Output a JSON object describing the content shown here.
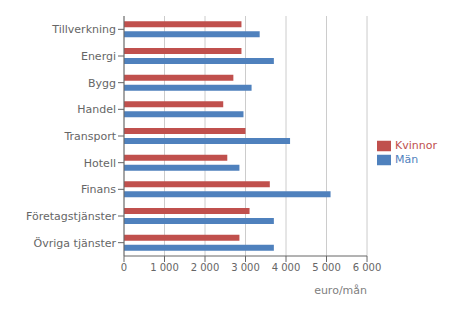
{
  "chart_data": {
    "type": "bar",
    "orientation": "horizontal",
    "categories": [
      "Tillverkning",
      "Energi",
      "Bygg",
      "Handel",
      "Transport",
      "Hotell",
      "Finans",
      "Företagstjänster",
      "Övriga tjänster"
    ],
    "series": [
      {
        "name": "Kvinnor",
        "color": "#c0504d",
        "values": [
          2900,
          2900,
          2700,
          2450,
          3000,
          2550,
          3600,
          3100,
          2850
        ]
      },
      {
        "name": "Män",
        "color": "#4f81bd",
        "values": [
          3350,
          3700,
          3150,
          2950,
          4100,
          2850,
          5100,
          3700,
          3700
        ]
      }
    ],
    "xlabel": "euro/mån",
    "xlim": [
      0,
      6000
    ],
    "xticks": [
      0,
      {
        "value": 1000,
        "label": "1 000"
      },
      {
        "value": 2000,
        "label": "2 000"
      },
      {
        "value": 3000,
        "label": "3 000"
      },
      {
        "value": 4000,
        "label": "4 000"
      },
      {
        "value": 5000,
        "label": "5 000"
      },
      {
        "value": 6000,
        "label": "6 000"
      }
    ],
    "grid": true,
    "legend": "right"
  }
}
